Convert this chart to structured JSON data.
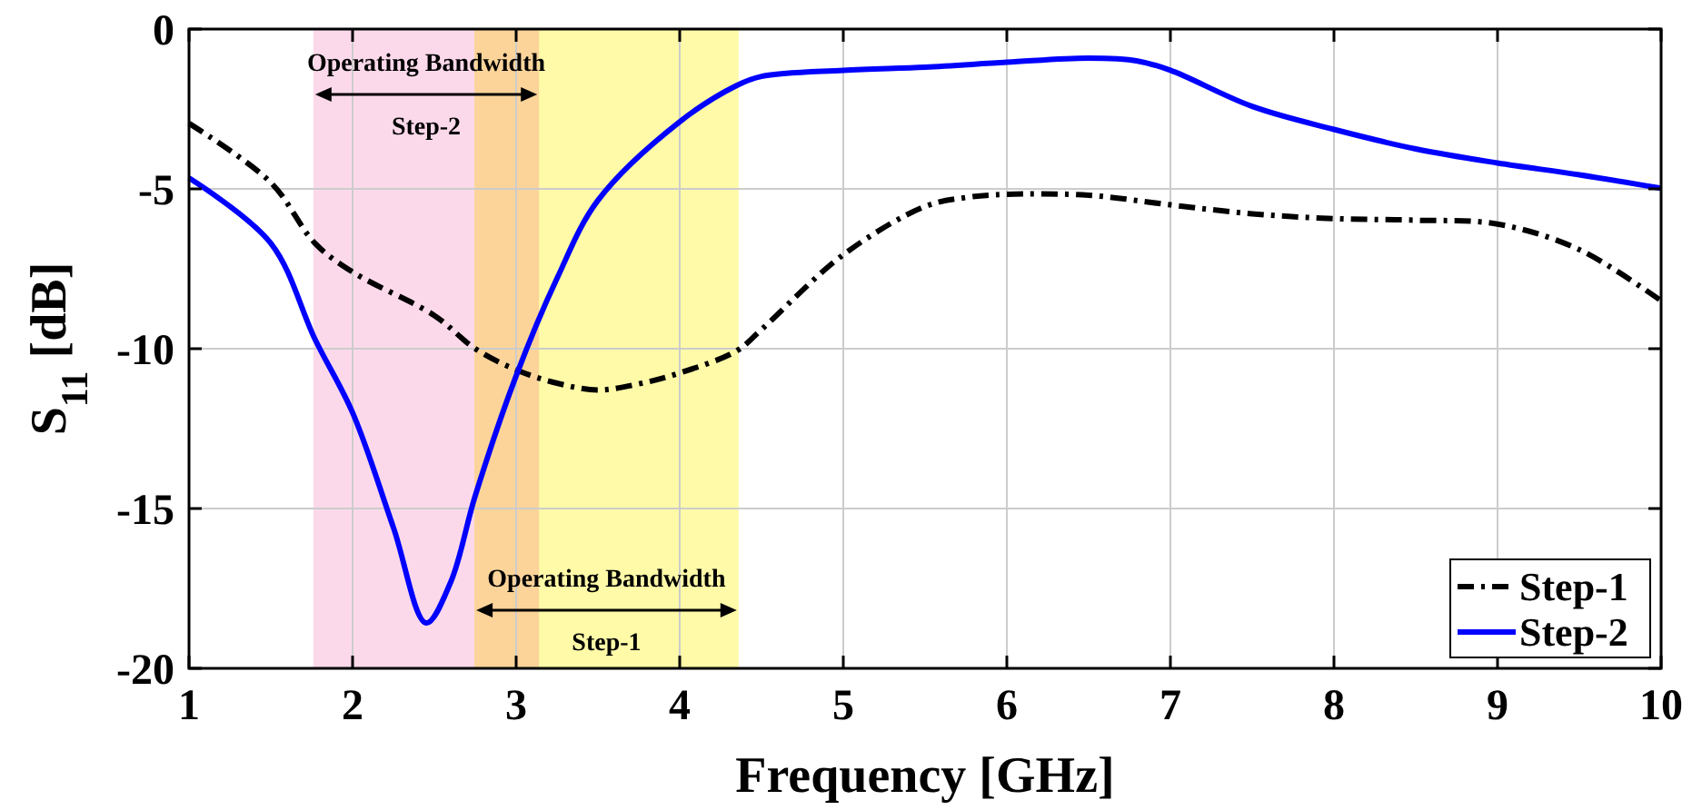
{
  "chart_data": {
    "type": "line",
    "xlabel": "Frequency [GHz]",
    "ylabel": "S$_{11}$ [dB]",
    "xlim": [
      1,
      10
    ],
    "xticks": [
      1,
      2,
      3,
      4,
      5,
      6,
      7,
      8,
      9,
      10
    ],
    "ylim": [
      -20,
      0
    ],
    "yticks": [
      -20,
      -15,
      -10,
      -5,
      0
    ],
    "grid": true,
    "legend": "bottom right",
    "series": [
      {
        "name": "Step-1",
        "color": "#000000",
        "line_style": "dashed",
        "x": [
          1,
          1.5,
          1.77,
          2,
          2.5,
          2.75,
          3,
          3.25,
          3.5,
          3.75,
          4,
          4.35,
          4.5,
          5,
          5.5,
          5.75,
          6,
          6.5,
          7,
          7.5,
          8,
          8.5,
          9,
          9.5,
          10
        ],
        "values": [
          -2.95,
          -4.8,
          -6.7,
          -7.6,
          -8.96,
          -10,
          -10.66,
          -11.08,
          -11.29,
          -11.1,
          -10.76,
          -10.06,
          -9.4,
          -7.06,
          -5.55,
          -5.27,
          -5.17,
          -5.2,
          -5.5,
          -5.78,
          -5.93,
          -5.98,
          -6.1,
          -6.9,
          -8.5
        ]
      },
      {
        "name": "Step-2",
        "color": "#0000ff",
        "line_style": "solid",
        "x": [
          1,
          1.5,
          1.77,
          2,
          2.25,
          2.45,
          2.6,
          2.75,
          3,
          3.25,
          3.5,
          4,
          4.35,
          4.5,
          5,
          5.5,
          6,
          6.5,
          6.8,
          7,
          7.5,
          8,
          8.5,
          9,
          9.5,
          10
        ],
        "values": [
          -4.66,
          -6.7,
          -9.7,
          -12,
          -15.6,
          -18.58,
          -17.3,
          -14.6,
          -10.85,
          -7.8,
          -5.36,
          -2.9,
          -1.76,
          -1.48,
          -1.29,
          -1.19,
          -1.04,
          -0.91,
          -1,
          -1.29,
          -2.42,
          -3.14,
          -3.75,
          -4.19,
          -4.56,
          -4.98
        ]
      }
    ],
    "bands": [
      {
        "axis": "x",
        "from": 1.76,
        "to": 3.14,
        "color": "#fcd9ea"
      },
      {
        "axis": "x",
        "from": 2.745,
        "to": 4.36,
        "color": "#fffaa8"
      }
    ],
    "annotations": [
      "Operating Bandwidth",
      "Step-2",
      "Operating Bandwidth",
      "Step-1"
    ]
  }
}
